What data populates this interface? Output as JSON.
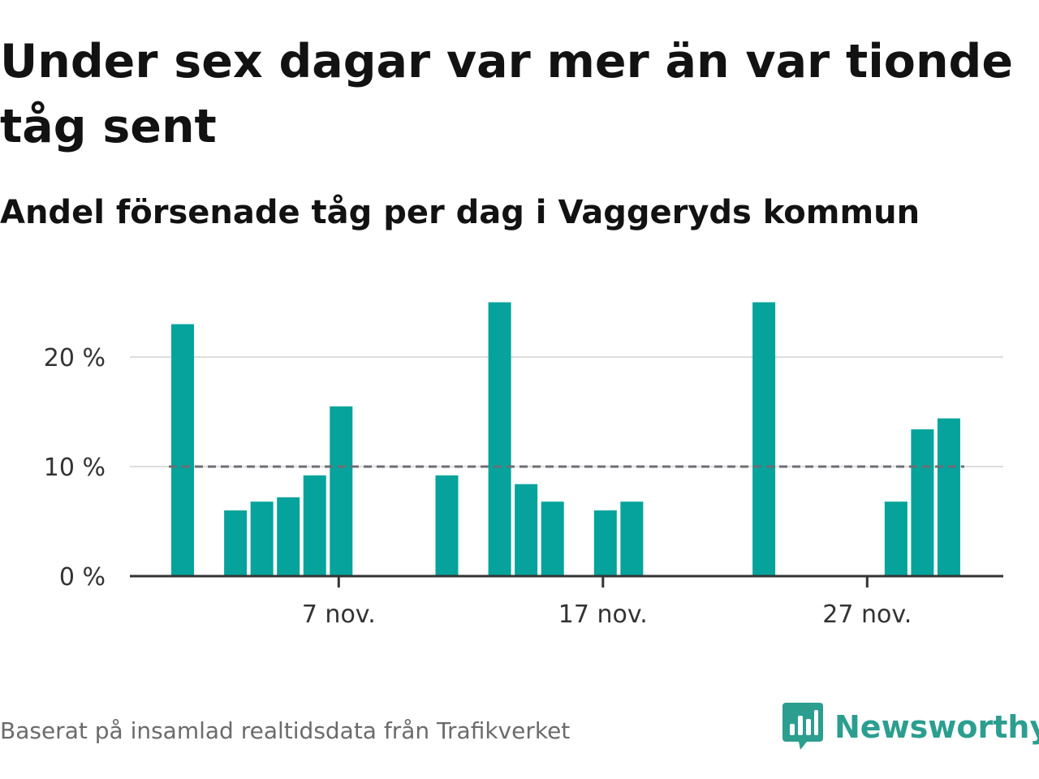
{
  "title": "Under sex dagar var mer än var tionde tåg sent",
  "subtitle": "Andel försenade tåg per dag i Vaggeryds kommun",
  "footer": "Baserat på insamlad realtidsdata från Trafikverket",
  "brand": {
    "name": "Newsworthy",
    "color": "#2b9e8f",
    "icon": "newsworthy-logo-icon"
  },
  "colors": {
    "bar": "#05a39b",
    "threshold": "#6d6d75",
    "grid": "#dddddd",
    "axis": "#333333"
  },
  "chart_data": {
    "type": "bar",
    "title": "Under sex dagar var mer än var tionde tåg sent",
    "subtitle": "Andel försenade tåg per dag i Vaggeryds kommun",
    "xlabel": "",
    "ylabel": "",
    "x_unit": "day of November",
    "x_range": [
      1,
      30
    ],
    "x": [
      1,
      3,
      4,
      5,
      6,
      7,
      11,
      13,
      14,
      15,
      17,
      18,
      23,
      28,
      29,
      30
    ],
    "values": [
      23,
      6,
      6.8,
      7.2,
      9.2,
      15.5,
      9.2,
      25,
      8.4,
      6.8,
      6,
      6.8,
      25,
      6.8,
      13.4,
      14.4
    ],
    "ylim": [
      0,
      25
    ],
    "yticks": [
      0,
      10,
      20
    ],
    "ytick_labels": [
      "0 %",
      "10 %",
      "20 %"
    ],
    "xticks": [
      7,
      17,
      27
    ],
    "xtick_labels": [
      "7 nov.",
      "17 nov.",
      "27 nov."
    ],
    "threshold": 10,
    "grid": "horizontal",
    "legend": "none"
  }
}
